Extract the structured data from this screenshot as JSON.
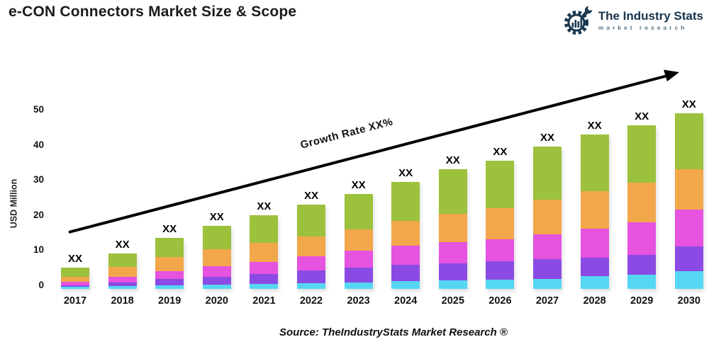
{
  "header": {
    "title": "e-CON Connectors Market Size & Scope",
    "logo": {
      "name": "The Industry Stats",
      "tagline": "market research",
      "brand_color": "#16324a"
    }
  },
  "footer": {
    "source": "Source: TheIndustryStats Market Research ®"
  },
  "chart_data": {
    "type": "bar",
    "stacked": true,
    "title": "e-CON Connectors Market Size & Scope",
    "xlabel": "",
    "ylabel": "USD Million",
    "ylim": [
      0,
      50
    ],
    "yticks": [
      0,
      10,
      20,
      30,
      40,
      50
    ],
    "grid": false,
    "legend": "none",
    "bar_value_label": "XX",
    "annotation": {
      "growth_label": "Growth Rate XX%",
      "arrow": "black diagonal arrow from lower-left to upper-right"
    },
    "categories": [
      "2017",
      "2018",
      "2019",
      "2020",
      "2021",
      "2022",
      "2023",
      "2024",
      "2025",
      "2026",
      "2027",
      "2028",
      "2029",
      "2030"
    ],
    "series": [
      {
        "name": "layer-1-bottom-cyan",
        "color": "#55D6F2",
        "values": [
          0.5,
          0.8,
          1.1,
          1.3,
          1.5,
          1.7,
          1.9,
          2.2,
          2.4,
          2.6,
          2.9,
          3.6,
          4.1,
          5.0
        ]
      },
      {
        "name": "layer-2-purple",
        "color": "#8B4AE3",
        "values": [
          0.6,
          1.1,
          1.7,
          2.2,
          2.8,
          3.5,
          4.2,
          4.6,
          4.9,
          5.2,
          5.6,
          5.2,
          5.6,
          7.0
        ]
      },
      {
        "name": "layer-3-magenta",
        "color": "#E553DF",
        "values": [
          1.0,
          1.6,
          2.2,
          2.9,
          3.4,
          4.1,
          4.7,
          5.4,
          6.0,
          6.4,
          7.1,
          8.3,
          9.3,
          10.5
        ]
      },
      {
        "name": "layer-4-orange",
        "color": "#F2A74B",
        "values": [
          1.4,
          2.7,
          4.0,
          4.8,
          5.4,
          5.7,
          6.2,
          7.2,
          8.1,
          8.8,
          9.9,
          10.8,
          11.3,
          11.5
        ]
      },
      {
        "name": "layer-5-top-green",
        "color": "#9CC13C",
        "values": [
          2.5,
          3.8,
          5.5,
          6.8,
          7.9,
          9.0,
          10.0,
          11.1,
          12.6,
          13.5,
          15.0,
          16.1,
          16.2,
          16.0
        ]
      }
    ],
    "totals_estimated": [
      6,
      10,
      14.5,
      18,
      21,
      24,
      27,
      30.5,
      34,
      36.5,
      40.5,
      44,
      46.5,
      50
    ]
  }
}
